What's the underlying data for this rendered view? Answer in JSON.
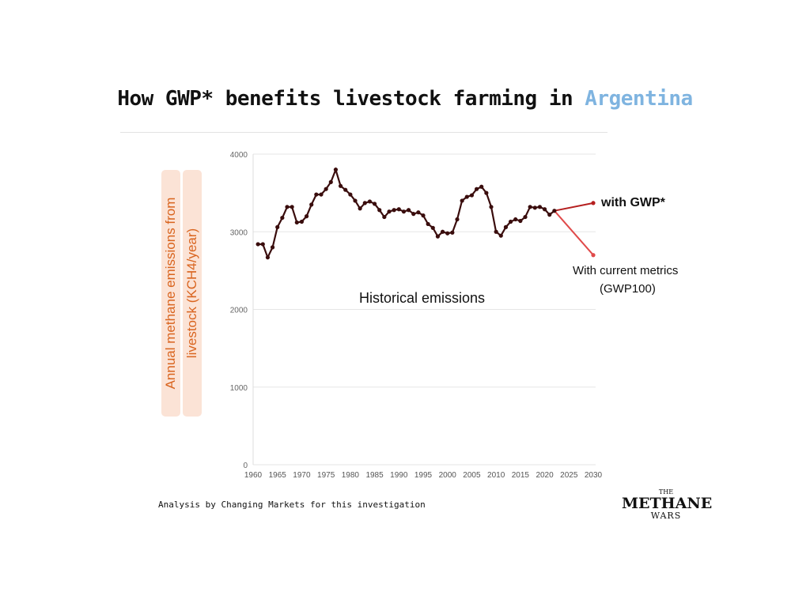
{
  "title": {
    "prefix": "How GWP* benefits livestock farming in ",
    "highlight": "Argentina",
    "highlight_color": "#7fb4e0"
  },
  "source_note": "Analysis by Changing Markets for this investigation",
  "logo": {
    "line1": "THE",
    "line2": "METHANE",
    "line3": "WARS"
  },
  "chart_data": {
    "type": "line",
    "ylabel_line1": "Annual methane emissions from",
    "ylabel_line2": "livestock (KCH4/year)",
    "xlim": [
      1960,
      2030
    ],
    "ylim": [
      0,
      4000
    ],
    "x_ticks": [
      1960,
      1965,
      1970,
      1975,
      1980,
      1985,
      1990,
      1995,
      2000,
      2005,
      2010,
      2015,
      2020,
      2025,
      2030
    ],
    "y_ticks": [
      0,
      1000,
      2000,
      3000,
      4000
    ],
    "grid": true,
    "series": [
      {
        "name": "Historical emissions",
        "color": "#3a0d0d",
        "x": [
          1961,
          1962,
          1963,
          1964,
          1965,
          1966,
          1967,
          1968,
          1969,
          1970,
          1971,
          1972,
          1973,
          1974,
          1975,
          1976,
          1977,
          1978,
          1979,
          1980,
          1981,
          1982,
          1983,
          1984,
          1985,
          1986,
          1987,
          1988,
          1989,
          1990,
          1991,
          1992,
          1993,
          1994,
          1995,
          1996,
          1997,
          1998,
          1999,
          2000,
          2001,
          2002,
          2003,
          2004,
          2005,
          2006,
          2007,
          2008,
          2009,
          2010,
          2011,
          2012,
          2013,
          2014,
          2015,
          2016,
          2017,
          2018,
          2019,
          2020,
          2021,
          2022
        ],
        "y": [
          2840,
          2840,
          2670,
          2800,
          3060,
          3180,
          3320,
          3320,
          3120,
          3130,
          3200,
          3350,
          3480,
          3480,
          3550,
          3640,
          3800,
          3590,
          3540,
          3480,
          3400,
          3300,
          3370,
          3390,
          3360,
          3280,
          3190,
          3260,
          3280,
          3290,
          3260,
          3280,
          3230,
          3250,
          3210,
          3100,
          3050,
          2940,
          3000,
          2980,
          2990,
          3160,
          3400,
          3450,
          3470,
          3550,
          3580,
          3500,
          3320,
          3000,
          2950,
          3060,
          3130,
          3160,
          3140,
          3190,
          3320,
          3310,
          3320,
          3290,
          3220,
          3270
        ]
      },
      {
        "name": "with GWP*",
        "color": "#b51f1f",
        "x": [
          2022,
          2030
        ],
        "y": [
          3270,
          3370
        ]
      },
      {
        "name": "With current metrics",
        "color": "#e04a4a",
        "x": [
          2022,
          2030
        ],
        "y": [
          3270,
          2700
        ]
      }
    ],
    "annotations": {
      "historical": "Historical emissions",
      "gwp_star": "with GWP*",
      "current_line1": "With current metrics",
      "current_line2": "(GWP100)"
    }
  }
}
